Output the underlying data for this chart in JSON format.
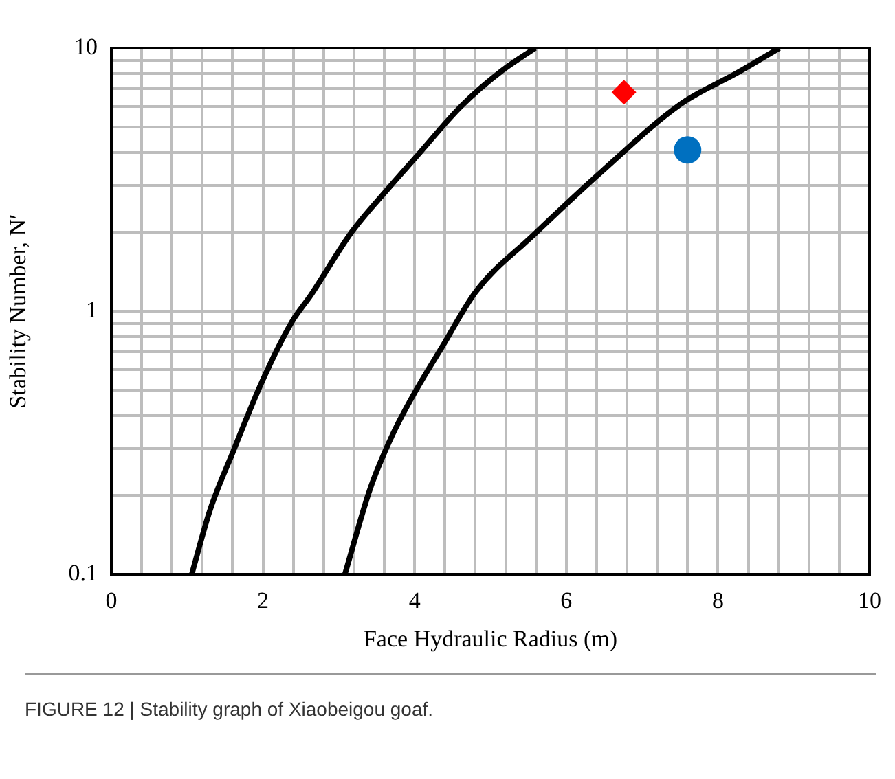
{
  "chart_data": {
    "type": "line",
    "xlabel": "Face Hydraulic Radius (m)",
    "ylabel": "Stability Number, N′",
    "log": "y",
    "grid": true,
    "legend": false,
    "line_style": "solid",
    "xlim": [
      0,
      10
    ],
    "ylim": [
      0.1,
      10
    ],
    "xticks": [
      0,
      {
        "value": 0.4,
        "label": null
      },
      {
        "value": 0.8,
        "label": null
      },
      {
        "value": 1.2,
        "label": null
      },
      {
        "value": 1.6,
        "label": null
      },
      2,
      {
        "value": 2.4,
        "label": null
      },
      {
        "value": 2.8,
        "label": null
      },
      {
        "value": 3.2,
        "label": null
      },
      {
        "value": 3.6,
        "label": null
      },
      4,
      {
        "value": 4.4,
        "label": null
      },
      {
        "value": 4.8,
        "label": null
      },
      {
        "value": 5.2,
        "label": null
      },
      {
        "value": 5.6,
        "label": null
      },
      6,
      {
        "value": 6.4,
        "label": null
      },
      {
        "value": 6.8,
        "label": null
      },
      {
        "value": 7.2,
        "label": null
      },
      {
        "value": 7.6,
        "label": null
      },
      8,
      {
        "value": 8.4,
        "label": null
      },
      {
        "value": 8.8,
        "label": null
      },
      {
        "value": 9.2,
        "label": null
      },
      {
        "value": 9.6,
        "label": null
      },
      10
    ],
    "yticks": [
      0.1,
      {
        "value": 0.2,
        "label": null
      },
      {
        "value": 0.3,
        "label": null
      },
      {
        "value": 0.4,
        "label": null
      },
      {
        "value": 0.5,
        "label": null
      },
      {
        "value": 0.6,
        "label": null
      },
      {
        "value": 0.7,
        "label": null
      },
      {
        "value": 0.8,
        "label": null
      },
      {
        "value": 0.9,
        "label": null
      },
      1,
      {
        "value": 2,
        "label": null
      },
      {
        "value": 3,
        "label": null
      },
      {
        "value": 4,
        "label": null
      },
      {
        "value": 5,
        "label": null
      },
      {
        "value": 6,
        "label": null
      },
      {
        "value": 7,
        "label": null
      },
      {
        "value": 8,
        "label": null
      },
      {
        "value": 9,
        "label": null
      },
      10
    ],
    "series": [
      {
        "type": "line",
        "color": "#000000",
        "marker": "none",
        "x": [
          1.06,
          1.3,
          1.6,
          2.0,
          2.38,
          2.63,
          3.17,
          3.64,
          4.0,
          4.61,
          5.15,
          5.59
        ],
        "values": [
          0.1,
          0.175,
          0.29,
          0.55,
          0.91,
          1.15,
          2.0,
          2.9,
          3.8,
          6.0,
          8.2,
          10
        ]
      },
      {
        "type": "line",
        "color": "#000000",
        "marker": "none",
        "x": [
          3.08,
          3.41,
          3.71,
          4.0,
          4.36,
          4.81,
          5.57,
          6.47,
          7.5,
          8.27,
          8.81
        ],
        "values": [
          0.1,
          0.21,
          0.34,
          0.49,
          0.73,
          1.19,
          1.95,
          3.4,
          6.1,
          8.1,
          10
        ]
      },
      {
        "type": "scatter",
        "color": "#ff0000",
        "marker": "diamond",
        "x": [
          6.76
        ],
        "values": [
          6.8
        ]
      },
      {
        "type": "scatter",
        "color": "#0070c0",
        "marker": "circle",
        "x": [
          7.6
        ],
        "values": [
          4.1
        ]
      }
    ],
    "annotations": [
      "FIGURE 12 | Stability graph of Xiaobeigou goaf."
    ]
  }
}
